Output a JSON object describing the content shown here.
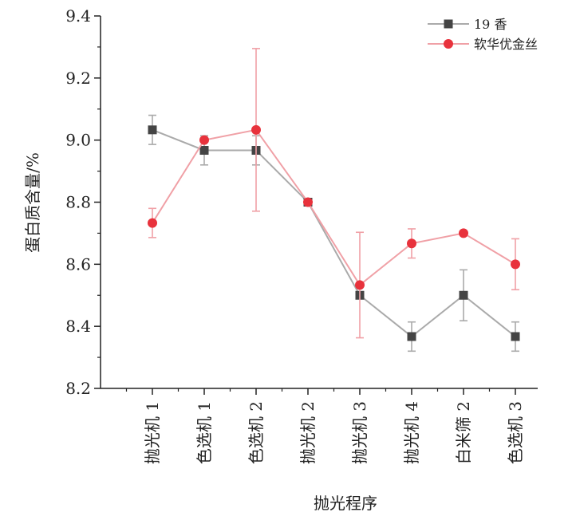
{
  "chart_data": {
    "type": "line",
    "xlabel": "抛光程序",
    "ylabel": "蛋白质含量/%",
    "categories": [
      "抛光机 1",
      "色选机 1",
      "色选机 2",
      "抛光机 2",
      "抛光机 3",
      "抛光机 4",
      "白米筛 2",
      "色选机 3"
    ],
    "ylim": [
      8.2,
      9.4
    ],
    "yticks": [
      "8.2",
      "8.4",
      "8.6",
      "8.8",
      "9.0",
      "9.2",
      "9.4"
    ],
    "grid": false,
    "legend_position": "top-right",
    "series": [
      {
        "name": "19 香",
        "marker": "square",
        "color": "#444444",
        "line_color": "#aaaaaa",
        "values": [
          9.033,
          8.967,
          8.967,
          8.8,
          8.5,
          8.367,
          8.5,
          8.367
        ],
        "errors": [
          0.047,
          0.047,
          0.047,
          0.0,
          0.0,
          0.047,
          0.082,
          0.047
        ]
      },
      {
        "name": "软华优金丝",
        "marker": "circle",
        "color": "#e8323c",
        "line_color": "#f0a0a6",
        "values": [
          8.733,
          9.0,
          9.033,
          8.8,
          8.533,
          8.667,
          8.7,
          8.6
        ],
        "errors": [
          0.047,
          0.0,
          0.262,
          0.0,
          0.17,
          0.047,
          0.0,
          0.082
        ]
      }
    ]
  }
}
